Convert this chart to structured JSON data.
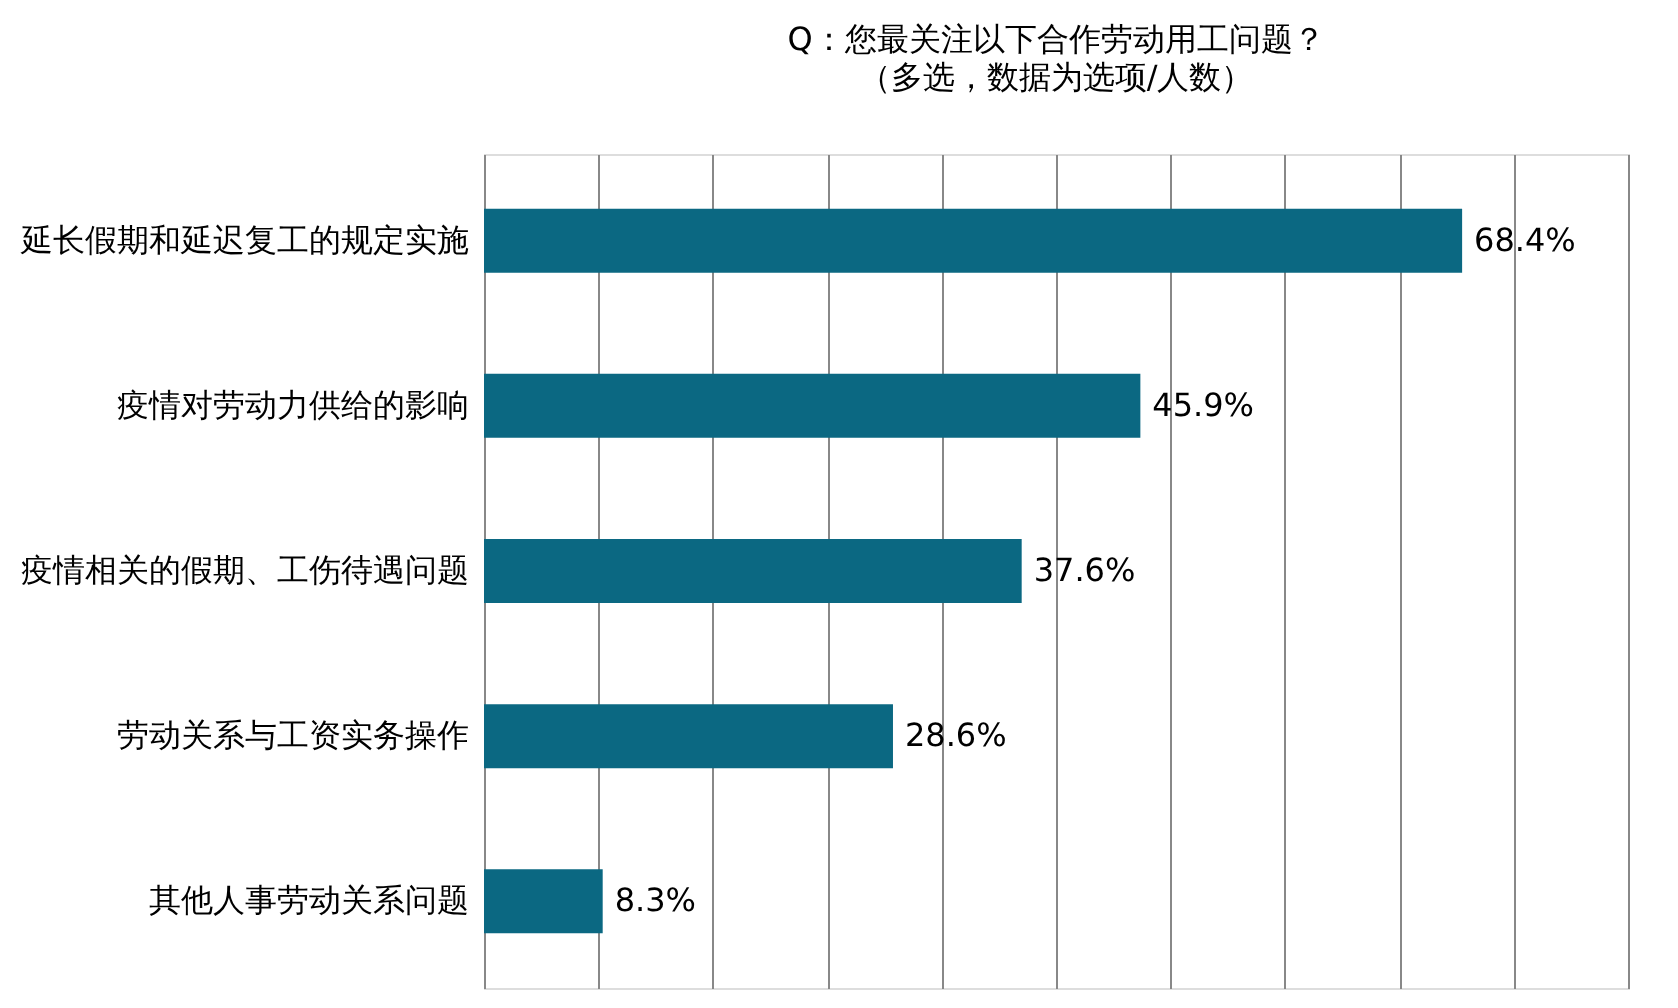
{
  "chart_data": {
    "type": "bar",
    "orientation": "horizontal",
    "title": "Q：您最关注以下合作劳动用工问题？",
    "subtitle": "（多选，数据为选项/人数）",
    "categories": [
      "延长假期和延迟复工的规定实施",
      "疫情对劳动力供给的影响",
      "疫情相关的假期、工伤待遇问题",
      "劳动关系与工资实务操作",
      "其他人事劳动关系问题"
    ],
    "values": [
      68.4,
      45.9,
      37.6,
      28.6,
      8.3
    ],
    "value_labels": [
      "68.4%",
      "45.9%",
      "37.6%",
      "28.6%",
      "8.3%"
    ],
    "color": "#0b6882",
    "xlim": [
      0,
      80
    ],
    "xticks": [
      {
        "value": 0,
        "label": null
      },
      {
        "value": 8,
        "label": null
      },
      {
        "value": 16,
        "label": null
      },
      {
        "value": 24,
        "label": null
      },
      {
        "value": 32,
        "label": null
      },
      {
        "value": 40,
        "label": null
      },
      {
        "value": 48,
        "label": null
      },
      {
        "value": 56,
        "label": null
      },
      {
        "value": 64,
        "label": null
      },
      {
        "value": 72,
        "label": null
      },
      {
        "value": 80,
        "label": null
      }
    ],
    "grid": "x",
    "tick_labels": "y"
  }
}
